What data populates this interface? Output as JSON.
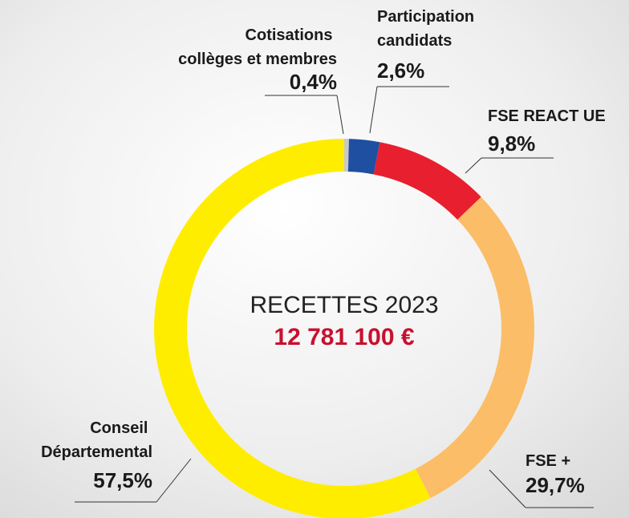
{
  "chart_data": {
    "type": "donut",
    "categories": [
      "Cotisations collèges et membres",
      "Participation candidats",
      "FSE REACT UE",
      "FSE +",
      "Conseil Départemental"
    ],
    "values": [
      0.4,
      2.6,
      9.8,
      29.7,
      57.5
    ],
    "value_labels": [
      "0,4%",
      "2,6%",
      "9,8%",
      "29,7%",
      "57,5%"
    ],
    "colors": [
      "#c9c9c9",
      "#1f4fa0",
      "#e81f2e",
      "#fbbd67",
      "#ffed00"
    ],
    "center_title": "RECETTES 2023",
    "center_total": "12 781 100 €"
  }
}
